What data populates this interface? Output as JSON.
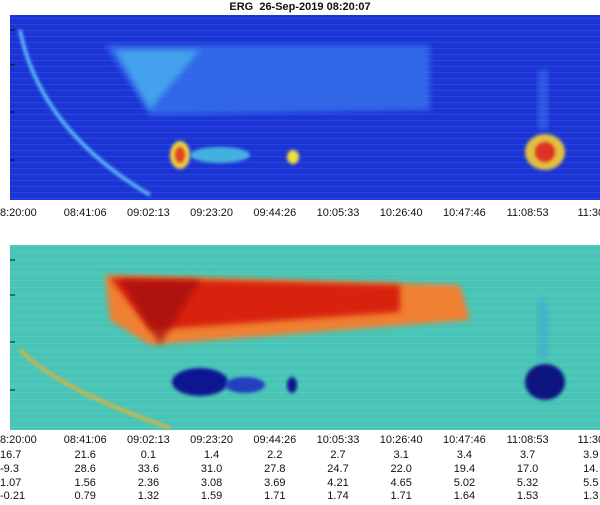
{
  "header": {
    "title": "ERG  26-Sep-2019 08:20:07"
  },
  "panels": [
    {
      "time_labels": [
        "8:20:00",
        "08:41:06",
        "09:02:13",
        "09:23:20",
        "09:44:26",
        "10:05:33",
        "10:26:40",
        "10:47:46",
        "11:08:53",
        "11:30"
      ]
    },
    {
      "time_labels": [
        "8:20:00",
        "08:41:06",
        "09:02:13",
        "09:23:20",
        "09:44:26",
        "10:05:33",
        "10:26:40",
        "10:47:46",
        "11:08:53",
        "11:30"
      ]
    }
  ],
  "table": {
    "rows": [
      [
        "16.7",
        "21.6",
        "0.1",
        "1.4",
        "2.2",
        "2.7",
        "3.1",
        "3.4",
        "3.7",
        "3.9"
      ],
      [
        "-9.3",
        "28.6",
        "33.6",
        "31.0",
        "27.8",
        "24.7",
        "22.0",
        "19.4",
        "17.0",
        "14."
      ],
      [
        "1.07",
        "1.56",
        "2.36",
        "3.08",
        "3.69",
        "4.21",
        "4.65",
        "5.02",
        "5.32",
        "5.5"
      ],
      [
        "-0.21",
        "0.79",
        "1.32",
        "1.59",
        "1.71",
        "1.74",
        "1.71",
        "1.64",
        "1.53",
        "1.3"
      ]
    ]
  }
}
